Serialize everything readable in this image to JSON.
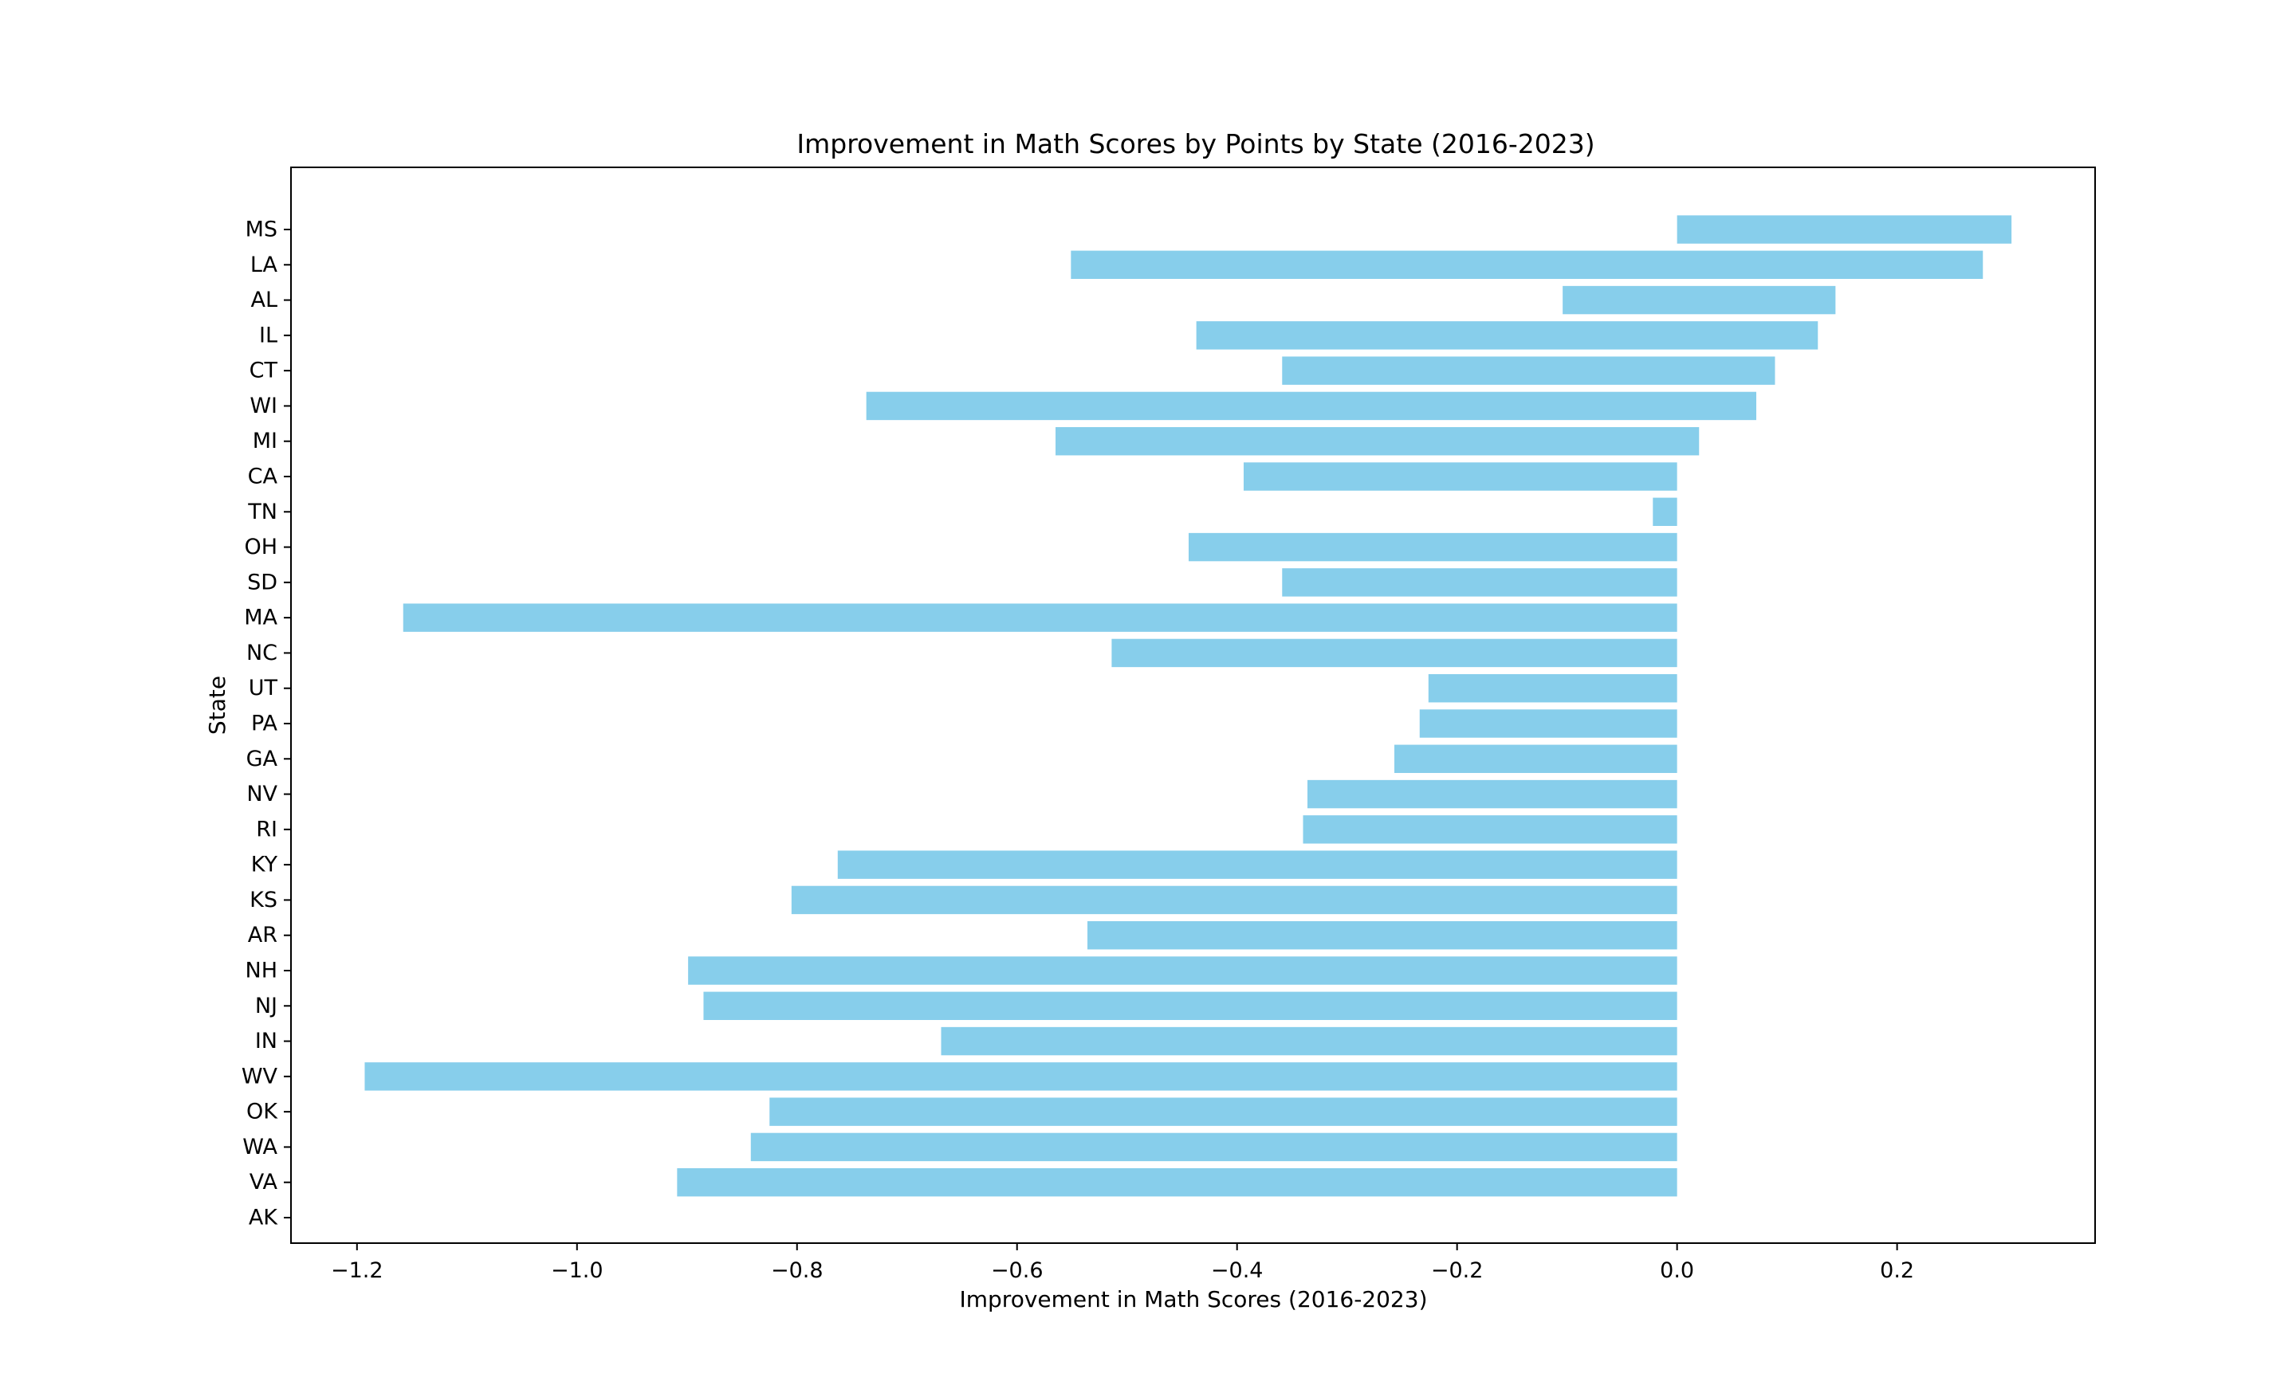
{
  "chart_data": {
    "type": "bar",
    "orientation": "horizontal",
    "title": "Improvement in Math Scores by Points by State (2016-2023)",
    "xlabel": "Improvement in Math Scores (2016-2023)",
    "ylabel": "State",
    "xlim": [
      -1.26,
      0.38
    ],
    "xticks": [
      {
        "value": -1.2,
        "label": "−1.2"
      },
      {
        "value": -1.0,
        "label": "−1.0"
      },
      {
        "value": -0.8,
        "label": "−0.8"
      },
      {
        "value": -0.6,
        "label": "−0.6"
      },
      {
        "value": -0.4,
        "label": "−0.4"
      },
      {
        "value": -0.2,
        "label": "−0.2"
      },
      {
        "value": 0.0,
        "label": "0.0"
      },
      {
        "value": 0.2,
        "label": "0.2"
      }
    ],
    "color": "#87CEEB",
    "grid": false,
    "bars": [
      {
        "state": "MS",
        "start": 0.0,
        "end": 0.304
      },
      {
        "state": "LA",
        "start": -0.551,
        "end": 0.278
      },
      {
        "state": "AL",
        "start": -0.104,
        "end": 0.144
      },
      {
        "state": "IL",
        "start": -0.437,
        "end": 0.128
      },
      {
        "state": "CT",
        "start": -0.359,
        "end": 0.089
      },
      {
        "state": "WI",
        "start": -0.737,
        "end": 0.072
      },
      {
        "state": "MI",
        "start": -0.565,
        "end": 0.02
      },
      {
        "state": "CA",
        "start": -0.394,
        "end": 0.0
      },
      {
        "state": "TN",
        "start": -0.022,
        "end": 0.0
      },
      {
        "state": "OH",
        "start": -0.444,
        "end": 0.0
      },
      {
        "state": "SD",
        "start": -0.359,
        "end": 0.0
      },
      {
        "state": "MA",
        "start": -1.158,
        "end": 0.0
      },
      {
        "state": "NC",
        "start": -0.514,
        "end": 0.0
      },
      {
        "state": "UT",
        "start": -0.226,
        "end": 0.0
      },
      {
        "state": "PA",
        "start": -0.234,
        "end": 0.0
      },
      {
        "state": "GA",
        "start": -0.257,
        "end": 0.0
      },
      {
        "state": "NV",
        "start": -0.336,
        "end": 0.0
      },
      {
        "state": "RI",
        "start": -0.34,
        "end": 0.0
      },
      {
        "state": "KY",
        "start": -0.763,
        "end": 0.0
      },
      {
        "state": "KS",
        "start": -0.805,
        "end": 0.0
      },
      {
        "state": "AR",
        "start": -0.536,
        "end": 0.0
      },
      {
        "state": "NH",
        "start": -0.899,
        "end": 0.0
      },
      {
        "state": "NJ",
        "start": -0.885,
        "end": 0.0
      },
      {
        "state": "IN",
        "start": -0.669,
        "end": 0.0
      },
      {
        "state": "WV",
        "start": -1.193,
        "end": 0.0
      },
      {
        "state": "OK",
        "start": -0.825,
        "end": 0.0
      },
      {
        "state": "WA",
        "start": -0.842,
        "end": 0.0
      },
      {
        "state": "VA",
        "start": -0.909,
        "end": 0.0
      },
      {
        "state": "AK",
        "start": 0.0,
        "end": 0.0
      }
    ]
  }
}
